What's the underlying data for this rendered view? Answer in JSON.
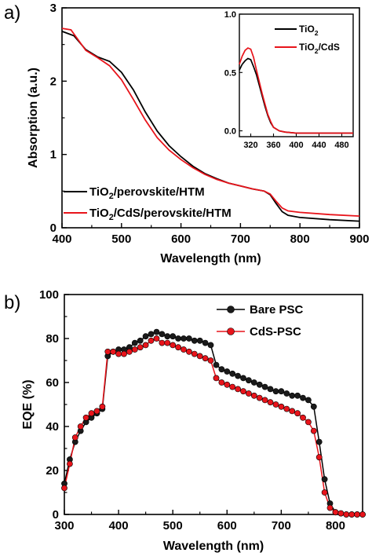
{
  "chart_data": [
    {
      "type": "line",
      "panel_label": "a)",
      "xlabel": "Wavelength (nm)",
      "ylabel": "Absorption (a.u.)",
      "xlim": [
        400,
        900
      ],
      "ylim": [
        0,
        3
      ],
      "xticks": [
        "400",
        "500",
        "600",
        "700",
        "800",
        "900"
      ],
      "yticks": [
        "0",
        "1",
        "2",
        "3"
      ],
      "legend_position": "bottom-left",
      "series": [
        {
          "name": "TiO2/perovskite/HTM",
          "name_main": "TiO",
          "name_sub": "2",
          "name_rest": "/perovskite/HTM",
          "color": "#000000",
          "x": [
            400,
            420,
            440,
            460,
            480,
            500,
            520,
            540,
            560,
            580,
            600,
            620,
            640,
            660,
            680,
            700,
            720,
            740,
            750,
            760,
            770,
            780,
            800,
            850,
            900
          ],
          "y": [
            2.68,
            2.62,
            2.43,
            2.33,
            2.27,
            2.12,
            1.88,
            1.58,
            1.32,
            1.12,
            0.97,
            0.84,
            0.74,
            0.67,
            0.61,
            0.57,
            0.53,
            0.5,
            0.45,
            0.33,
            0.22,
            0.17,
            0.14,
            0.11,
            0.09
          ]
        },
        {
          "name": "TiO2/CdS/perovskite/HTM",
          "name_main": "TiO",
          "name_sub": "2",
          "name_rest": "/CdS/perovskite/HTM",
          "color": "#e8141b",
          "x": [
            400,
            415,
            440,
            460,
            480,
            500,
            520,
            540,
            560,
            580,
            600,
            620,
            640,
            660,
            680,
            700,
            720,
            740,
            750,
            760,
            770,
            780,
            800,
            850,
            900
          ],
          "y": [
            2.72,
            2.7,
            2.42,
            2.32,
            2.21,
            2.02,
            1.75,
            1.47,
            1.23,
            1.06,
            0.93,
            0.82,
            0.73,
            0.66,
            0.61,
            0.57,
            0.53,
            0.5,
            0.46,
            0.36,
            0.27,
            0.23,
            0.21,
            0.18,
            0.16
          ]
        }
      ],
      "inset": {
        "xlim": [
          300,
          500
        ],
        "ylim": [
          -0.05,
          1.0
        ],
        "xticks": [
          "320",
          "360",
          "400",
          "440",
          "480"
        ],
        "yticks": [
          "0.0",
          "0.5",
          "1.0"
        ],
        "legend_position": "top-right",
        "series": [
          {
            "name": "TiO2",
            "name_main": "TiO",
            "name_sub": "2",
            "name_rest": "",
            "color": "#000000",
            "x": [
              300,
              305,
              310,
              315,
              320,
              325,
              330,
              335,
              340,
              345,
              350,
              355,
              360,
              370,
              380,
              400,
              440,
              500
            ],
            "y": [
              0.52,
              0.57,
              0.6,
              0.62,
              0.61,
              0.55,
              0.48,
              0.39,
              0.3,
              0.21,
              0.13,
              0.07,
              0.03,
              0.0,
              -0.01,
              -0.02,
              -0.02,
              -0.02
            ]
          },
          {
            "name": "TiO2/CdS",
            "name_main": "TiO",
            "name_sub": "2",
            "name_rest": "/CdS",
            "color": "#e8141b",
            "x": [
              300,
              305,
              310,
              315,
              320,
              325,
              330,
              335,
              340,
              345,
              350,
              355,
              360,
              370,
              380,
              400,
              440,
              500
            ],
            "y": [
              0.57,
              0.64,
              0.69,
              0.71,
              0.7,
              0.63,
              0.52,
              0.42,
              0.32,
              0.23,
              0.14,
              0.08,
              0.03,
              0.0,
              -0.01,
              -0.02,
              -0.02,
              -0.02
            ]
          }
        ]
      }
    },
    {
      "type": "line",
      "panel_label": "b)",
      "xlabel": "Wavelength (nm)",
      "ylabel": "EQE (%)",
      "xlim": [
        300,
        850
      ],
      "ylim": [
        0,
        100
      ],
      "xticks": [
        "300",
        "400",
        "500",
        "600",
        "700",
        "800"
      ],
      "yticks": [
        "0",
        "20",
        "40",
        "60",
        "80",
        "100"
      ],
      "legend_position": "top-right",
      "series": [
        {
          "name": "Bare PSC",
          "color": "#000000",
          "marker_color": "#1a1a1a",
          "x": [
            300,
            310,
            320,
            330,
            340,
            350,
            360,
            370,
            380,
            390,
            400,
            410,
            420,
            430,
            440,
            450,
            460,
            470,
            480,
            490,
            500,
            510,
            520,
            530,
            540,
            550,
            560,
            570,
            580,
            590,
            600,
            610,
            620,
            630,
            640,
            650,
            660,
            670,
            680,
            690,
            700,
            710,
            720,
            730,
            740,
            750,
            760,
            770,
            780,
            790,
            800,
            810,
            820,
            830,
            840,
            850
          ],
          "y": [
            14,
            25,
            33,
            38,
            42,
            44,
            46,
            48,
            72,
            74,
            75,
            75,
            76,
            78,
            79,
            81,
            82,
            83,
            82,
            81,
            81,
            80,
            80,
            80,
            79,
            79,
            78,
            77,
            68,
            66,
            65,
            64,
            63,
            62,
            61,
            60,
            59,
            58,
            57,
            56,
            56,
            55,
            54,
            54,
            53,
            52,
            49,
            33,
            16,
            5,
            1,
            0.5,
            0,
            0,
            0,
            0
          ]
        },
        {
          "name": "CdS-PSC",
          "color": "#e8141b",
          "marker_color": "#e8141b",
          "x": [
            300,
            310,
            320,
            330,
            340,
            350,
            360,
            370,
            380,
            390,
            400,
            410,
            420,
            430,
            440,
            450,
            460,
            470,
            480,
            490,
            500,
            510,
            520,
            530,
            540,
            550,
            560,
            570,
            580,
            590,
            600,
            610,
            620,
            630,
            640,
            650,
            660,
            670,
            680,
            690,
            700,
            710,
            720,
            730,
            740,
            750,
            760,
            770,
            780,
            790,
            800,
            810,
            820,
            830,
            840,
            850
          ],
          "y": [
            12,
            23,
            35,
            40,
            44,
            46,
            47,
            49,
            74,
            74,
            73,
            73,
            74,
            75,
            76,
            77,
            79,
            80,
            78,
            78,
            77,
            76,
            75,
            74,
            73,
            72,
            71,
            70,
            62,
            60,
            59,
            58,
            57,
            56,
            55,
            54,
            53,
            52,
            51,
            50,
            49,
            48,
            47,
            46,
            44,
            42,
            38,
            26,
            10,
            3,
            1,
            0.5,
            0,
            0,
            0,
            0
          ]
        }
      ]
    }
  ]
}
